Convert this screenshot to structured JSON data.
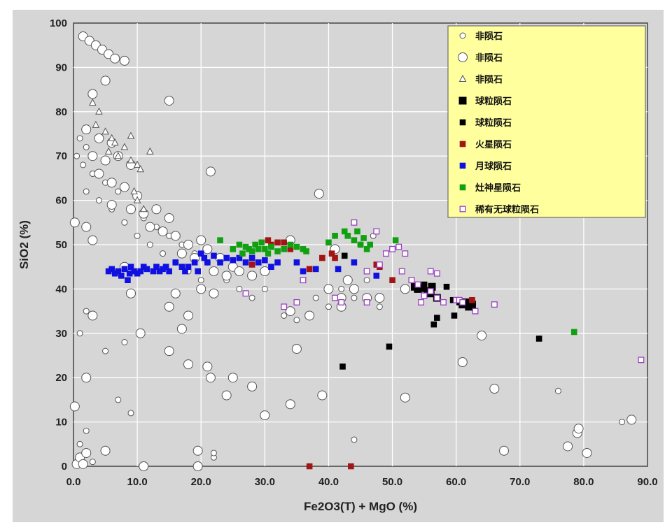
{
  "chart_data": {
    "type": "scatter",
    "title": "",
    "xlabel": "Fe2O3(T) + MgO  (%)",
    "ylabel": "SiO2 (%)",
    "xlim": [
      0,
      90
    ],
    "ylim": [
      0,
      100
    ],
    "x_ticks": [
      "0.0",
      "10.0",
      "20.0",
      "30.0",
      "40.0",
      "50.0",
      "60.0",
      "70.0",
      "80.0",
      "90.0"
    ],
    "y_ticks": [
      "0",
      "10",
      "20",
      "30",
      "40",
      "50",
      "60",
      "70",
      "80",
      "90",
      "100"
    ],
    "grid": true,
    "legend_position": "top-right",
    "series": [
      {
        "name": "非陨石",
        "marker": "circle-small",
        "color": "#555555",
        "fill": "#ffffff",
        "points": [
          [
            0.5,
            70
          ],
          [
            1,
            74
          ],
          [
            2,
            72
          ],
          [
            1.5,
            68
          ],
          [
            3,
            66
          ],
          [
            2,
            62
          ],
          [
            4,
            60
          ],
          [
            5,
            64
          ],
          [
            6,
            58
          ],
          [
            7,
            62
          ],
          [
            8,
            55
          ],
          [
            9,
            58
          ],
          [
            10,
            52
          ],
          [
            11,
            56
          ],
          [
            12,
            50
          ],
          [
            13,
            54
          ],
          [
            14,
            48
          ],
          [
            15,
            52
          ],
          [
            16,
            46
          ],
          [
            17,
            50
          ],
          [
            18,
            44
          ],
          [
            19,
            48
          ],
          [
            20,
            42
          ],
          [
            21,
            46
          ],
          [
            22,
            44
          ],
          [
            24,
            42
          ],
          [
            26,
            40
          ],
          [
            28,
            38
          ],
          [
            30,
            40
          ],
          [
            33,
            34
          ],
          [
            35,
            33
          ],
          [
            38,
            38
          ],
          [
            40,
            36
          ],
          [
            42,
            40
          ],
          [
            44,
            38
          ],
          [
            46,
            42
          ],
          [
            48,
            36
          ],
          [
            8,
            28
          ],
          [
            9,
            12
          ],
          [
            7,
            15
          ],
          [
            2,
            8
          ],
          [
            1,
            5
          ],
          [
            3,
            1
          ],
          [
            22,
            2
          ],
          [
            22,
            3
          ],
          [
            44,
            6
          ],
          [
            76,
            17
          ],
          [
            86,
            10
          ],
          [
            1,
            30
          ],
          [
            2,
            35
          ],
          [
            5,
            26
          ],
          [
            47,
            52
          ],
          [
            45,
            50
          ]
        ]
      },
      {
        "name": "非陨石",
        "marker": "circle-large",
        "color": "#555555",
        "fill": "#ffffff",
        "points": [
          [
            1.5,
            97
          ],
          [
            2.5,
            96
          ],
          [
            3.5,
            95
          ],
          [
            4.5,
            94
          ],
          [
            5.5,
            93
          ],
          [
            6.5,
            92
          ],
          [
            8,
            91.5
          ],
          [
            3,
            84
          ],
          [
            5,
            87
          ],
          [
            2,
            76
          ],
          [
            4,
            74
          ],
          [
            6,
            73
          ],
          [
            3,
            70
          ],
          [
            5,
            69
          ],
          [
            7,
            70
          ],
          [
            9,
            68
          ],
          [
            4,
            66
          ],
          [
            6,
            64
          ],
          [
            8,
            63
          ],
          [
            10,
            61
          ],
          [
            6,
            59
          ],
          [
            9,
            58
          ],
          [
            11,
            57
          ],
          [
            13,
            58
          ],
          [
            15,
            56
          ],
          [
            12,
            54
          ],
          [
            14,
            53
          ],
          [
            16,
            52
          ],
          [
            18,
            50
          ],
          [
            20,
            51
          ],
          [
            17,
            48
          ],
          [
            19,
            47
          ],
          [
            21,
            49
          ],
          [
            23,
            47
          ],
          [
            25,
            45
          ],
          [
            22,
            44
          ],
          [
            24,
            43
          ],
          [
            26,
            44
          ],
          [
            28,
            43
          ],
          [
            30,
            44
          ],
          [
            20,
            40
          ],
          [
            22,
            39
          ],
          [
            16,
            39
          ],
          [
            15,
            36
          ],
          [
            18,
            34
          ],
          [
            17,
            31
          ],
          [
            9,
            39
          ],
          [
            3,
            34
          ],
          [
            10.5,
            30
          ],
          [
            15,
            26
          ],
          [
            18,
            23
          ],
          [
            21,
            22.5
          ],
          [
            21.5,
            20
          ],
          [
            2,
            20
          ],
          [
            25,
            20
          ],
          [
            24,
            16
          ],
          [
            28,
            18
          ],
          [
            34,
            14
          ],
          [
            39,
            16
          ],
          [
            30,
            11.5
          ],
          [
            0.2,
            13.5
          ],
          [
            0.2,
            55
          ],
          [
            2,
            54
          ],
          [
            3,
            51
          ],
          [
            8,
            45
          ],
          [
            15,
            82.5
          ],
          [
            21.5,
            66.5
          ],
          [
            38.5,
            61.5
          ],
          [
            34,
            51
          ],
          [
            41,
            49
          ],
          [
            40,
            40
          ],
          [
            42,
            38
          ],
          [
            44,
            40
          ],
          [
            46,
            38
          ],
          [
            48,
            38
          ],
          [
            52,
            40
          ],
          [
            61,
            23.5
          ],
          [
            64,
            29.5
          ],
          [
            66,
            17.5
          ],
          [
            52,
            15.5
          ],
          [
            67.5,
            3.5
          ],
          [
            77.5,
            4.5
          ],
          [
            79,
            7.5
          ],
          [
            79.2,
            8.5
          ],
          [
            80.5,
            3
          ],
          [
            87.5,
            10.5
          ],
          [
            0.5,
            0.5
          ],
          [
            1,
            2
          ],
          [
            2,
            3
          ],
          [
            5,
            3.5
          ],
          [
            1.5,
            0.5
          ],
          [
            11,
            0
          ],
          [
            19.5,
            3.5
          ],
          [
            19.5,
            0
          ],
          [
            34,
            35
          ],
          [
            35,
            26.5
          ],
          [
            37,
            34
          ],
          [
            42,
            36
          ],
          [
            43,
            42
          ]
        ]
      },
      {
        "name": "非陨石",
        "marker": "triangle",
        "color": "#555555",
        "fill": "#ffffff",
        "points": [
          [
            3,
            82
          ],
          [
            4,
            80
          ],
          [
            3.5,
            77
          ],
          [
            5,
            75.5
          ],
          [
            6,
            74
          ],
          [
            5.5,
            71
          ],
          [
            6.5,
            73
          ],
          [
            7,
            70
          ],
          [
            8,
            72
          ],
          [
            9,
            74.5
          ],
          [
            9,
            69
          ],
          [
            10,
            68
          ],
          [
            10.5,
            67
          ],
          [
            12,
            71
          ],
          [
            9.5,
            62
          ],
          [
            10,
            60
          ],
          [
            11,
            58
          ]
        ]
      },
      {
        "name": "球粒陨石",
        "marker": "square-large",
        "color": "#000000",
        "fill": "#000000",
        "points": [
          [
            53.5,
            40.5
          ],
          [
            54,
            40
          ],
          [
            54.5,
            40.2
          ],
          [
            55.5,
            39.5
          ],
          [
            56,
            39
          ],
          [
            56.2,
            40.5
          ],
          [
            57,
            38
          ],
          [
            61,
            36.5
          ],
          [
            61.5,
            37
          ],
          [
            62,
            36
          ],
          [
            62.5,
            36.5
          ]
        ]
      },
      {
        "name": "球粒陨石",
        "marker": "square-small",
        "color": "#000000",
        "fill": "#000000",
        "points": [
          [
            42.5,
            47.5
          ],
          [
            42.2,
            22.5
          ],
          [
            49.5,
            27
          ],
          [
            56.5,
            32
          ],
          [
            57,
            33.5
          ],
          [
            58.5,
            40.5
          ],
          [
            59.5,
            37.5
          ],
          [
            59.7,
            34
          ],
          [
            60.5,
            37
          ],
          [
            73,
            28.8
          ],
          [
            55,
            41
          ]
        ]
      },
      {
        "name": "火星陨石",
        "marker": "square-small",
        "color": "#a31515",
        "fill": "#a31515",
        "points": [
          [
            28,
            45.5
          ],
          [
            30.5,
            51
          ],
          [
            31,
            50
          ],
          [
            32,
            50.5
          ],
          [
            33,
            50.5
          ],
          [
            34,
            49
          ],
          [
            37,
            44.5
          ],
          [
            39,
            47
          ],
          [
            40.5,
            48
          ],
          [
            41,
            47
          ],
          [
            47.5,
            45.5
          ],
          [
            48,
            45
          ],
          [
            50,
            42
          ],
          [
            62.5,
            37.5
          ],
          [
            37,
            0
          ],
          [
            43.5,
            0
          ]
        ]
      },
      {
        "name": "月球陨石",
        "marker": "square-small",
        "color": "#1010e0",
        "fill": "#1010e0",
        "points": [
          [
            5.5,
            44
          ],
          [
            6,
            44.5
          ],
          [
            6.5,
            43.5
          ],
          [
            7,
            44
          ],
          [
            7.5,
            43
          ],
          [
            8,
            44.5
          ],
          [
            8.5,
            42
          ],
          [
            8.8,
            43.5
          ],
          [
            9,
            45
          ],
          [
            9.5,
            44
          ],
          [
            10,
            43.5
          ],
          [
            10.5,
            44
          ],
          [
            11,
            45
          ],
          [
            11.5,
            44.5
          ],
          [
            12.5,
            44
          ],
          [
            13,
            45
          ],
          [
            13.5,
            44
          ],
          [
            14,
            44.5
          ],
          [
            14.5,
            45
          ],
          [
            15,
            44
          ],
          [
            16,
            46
          ],
          [
            17,
            45
          ],
          [
            17.5,
            44
          ],
          [
            18,
            45
          ],
          [
            19,
            46
          ],
          [
            19.5,
            44
          ],
          [
            20,
            48
          ],
          [
            20.5,
            47
          ],
          [
            21,
            46
          ],
          [
            22,
            47.5
          ],
          [
            23,
            46
          ],
          [
            24,
            47
          ],
          [
            25,
            46.5
          ],
          [
            26,
            47
          ],
          [
            27,
            46
          ],
          [
            28,
            47
          ],
          [
            29,
            46
          ],
          [
            30,
            46.5
          ],
          [
            31,
            45
          ],
          [
            32,
            46
          ],
          [
            35,
            46
          ],
          [
            36,
            44
          ],
          [
            38,
            44.5
          ],
          [
            41.5,
            44.5
          ],
          [
            44,
            46
          ],
          [
            47.5,
            43
          ]
        ]
      },
      {
        "name": "灶神星陨石",
        "marker": "square-small",
        "color": "#10a010",
        "fill": "#10a010",
        "points": [
          [
            23,
            51
          ],
          [
            25,
            49
          ],
          [
            26,
            50
          ],
          [
            26.5,
            48
          ],
          [
            27,
            49.5
          ],
          [
            27.5,
            49
          ],
          [
            28,
            48.5
          ],
          [
            28.5,
            50
          ],
          [
            29,
            49
          ],
          [
            29.5,
            50.5
          ],
          [
            30,
            49
          ],
          [
            30.5,
            48
          ],
          [
            31,
            49.5
          ],
          [
            32,
            48.5
          ],
          [
            33,
            49
          ],
          [
            34,
            50
          ],
          [
            35,
            49.5
          ],
          [
            36,
            49
          ],
          [
            36.5,
            48.5
          ],
          [
            40,
            50.5
          ],
          [
            41,
            52
          ],
          [
            42.5,
            53
          ],
          [
            43,
            52
          ],
          [
            44,
            51
          ],
          [
            44.5,
            53
          ],
          [
            45,
            50
          ],
          [
            45.5,
            51.5
          ],
          [
            46,
            49
          ],
          [
            46.5,
            50
          ],
          [
            50.5,
            51
          ],
          [
            78.5,
            30.3
          ]
        ]
      },
      {
        "name": "稀有无球粒陨石",
        "marker": "square-open",
        "color": "#9a40c0",
        "fill": "#ffffff",
        "points": [
          [
            44,
            55
          ],
          [
            47.5,
            53
          ],
          [
            46,
            44
          ],
          [
            48,
            45.5
          ],
          [
            49,
            48
          ],
          [
            50,
            49
          ],
          [
            51,
            49.5
          ],
          [
            52,
            48
          ],
          [
            51.5,
            44
          ],
          [
            53,
            42
          ],
          [
            54,
            41
          ],
          [
            54.5,
            37
          ],
          [
            55,
            38.5
          ],
          [
            56,
            39.5
          ],
          [
            57,
            38
          ],
          [
            58,
            37
          ],
          [
            56,
            44
          ],
          [
            57,
            43.5
          ],
          [
            60,
            37.5
          ],
          [
            60.5,
            37.5
          ],
          [
            61,
            37
          ],
          [
            63,
            35
          ],
          [
            66,
            36.5
          ],
          [
            89,
            24
          ],
          [
            33,
            36
          ],
          [
            35,
            37
          ],
          [
            36,
            42
          ],
          [
            27,
            39
          ],
          [
            46,
            37
          ],
          [
            41,
            38
          ],
          [
            42,
            37
          ]
        ]
      }
    ]
  }
}
